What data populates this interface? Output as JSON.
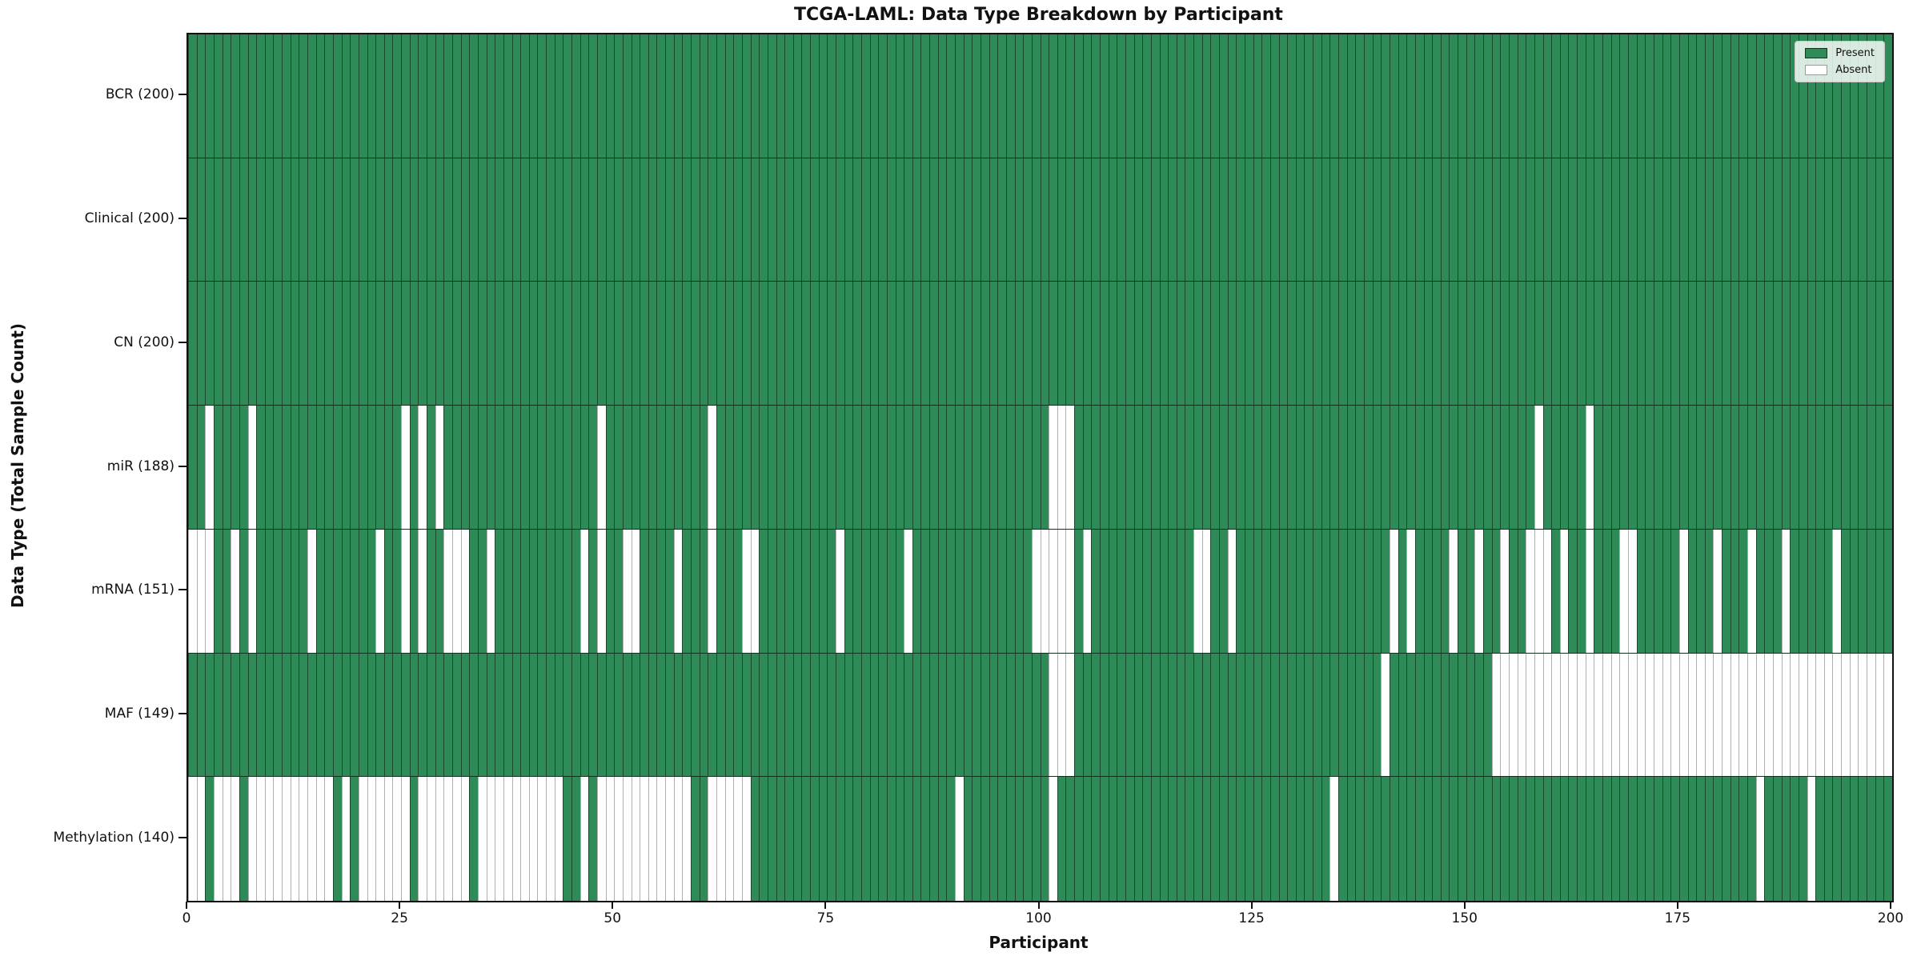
{
  "chart_data": {
    "type": "heatmap",
    "title": "TCGA-LAML: Data Type Breakdown by Participant",
    "xlabel": "Participant",
    "ylabel": "Data Type (Total Sample Count)",
    "x_range": [
      0,
      200
    ],
    "n_participants": 200,
    "x_ticks": [
      0,
      25,
      50,
      75,
      100,
      125,
      150,
      175,
      200
    ],
    "grid": false,
    "legend_position": "upper right",
    "legend": {
      "present": "Present",
      "absent": "Absent"
    },
    "colors": {
      "present": "#2e8b57",
      "absent": "#ffffff",
      "present_edge": "#1a3f28",
      "absent_edge": "#b0b0b0"
    },
    "rows": [
      {
        "name": "BCR",
        "label": "BCR (200)",
        "present_count": 200,
        "absent_participants": []
      },
      {
        "name": "Clinical",
        "label": "Clinical (200)",
        "present_count": 200,
        "absent_participants": []
      },
      {
        "name": "CN",
        "label": "CN (200)",
        "present_count": 200,
        "absent_participants": []
      },
      {
        "name": "miR",
        "label": "miR (188)",
        "present_count": 188,
        "absent_participants": [
          2,
          7,
          25,
          27,
          29,
          48,
          61,
          101,
          102,
          103,
          158,
          164
        ]
      },
      {
        "name": "mRNA",
        "label": "mRNA (151)",
        "present_count": 151,
        "absent_participants": [
          0,
          1,
          2,
          5,
          7,
          14,
          22,
          25,
          27,
          30,
          31,
          32,
          35,
          46,
          48,
          51,
          52,
          57,
          61,
          65,
          66,
          76,
          84,
          99,
          100,
          101,
          102,
          103,
          105,
          118,
          119,
          122,
          141,
          143,
          148,
          151,
          154,
          157,
          158,
          159,
          161,
          164,
          168,
          169,
          175,
          179,
          183,
          187,
          193
        ]
      },
      {
        "name": "MAF",
        "label": "MAF (149)",
        "present_count": 149,
        "absent_participants": [
          101,
          102,
          103,
          140,
          153,
          154,
          155,
          156,
          157,
          158,
          159,
          160,
          161,
          162,
          163,
          164,
          165,
          166,
          167,
          168,
          169,
          170,
          171,
          172,
          173,
          174,
          175,
          176,
          177,
          178,
          179,
          180,
          181,
          182,
          183,
          184,
          185,
          186,
          187,
          188,
          189,
          190,
          191,
          192,
          193,
          194,
          195,
          196,
          197,
          198,
          199
        ]
      },
      {
        "name": "Methylation",
        "label": "Methylation (140)",
        "present_count": 140,
        "absent_participants": [
          0,
          1,
          3,
          4,
          5,
          7,
          8,
          9,
          10,
          11,
          12,
          13,
          14,
          15,
          16,
          18,
          20,
          21,
          22,
          23,
          24,
          25,
          27,
          28,
          29,
          30,
          31,
          32,
          34,
          35,
          36,
          37,
          38,
          39,
          40,
          41,
          42,
          43,
          46,
          48,
          49,
          50,
          51,
          52,
          53,
          54,
          55,
          56,
          57,
          58,
          61,
          62,
          63,
          64,
          65,
          90,
          101,
          134,
          184,
          190
        ]
      }
    ]
  }
}
